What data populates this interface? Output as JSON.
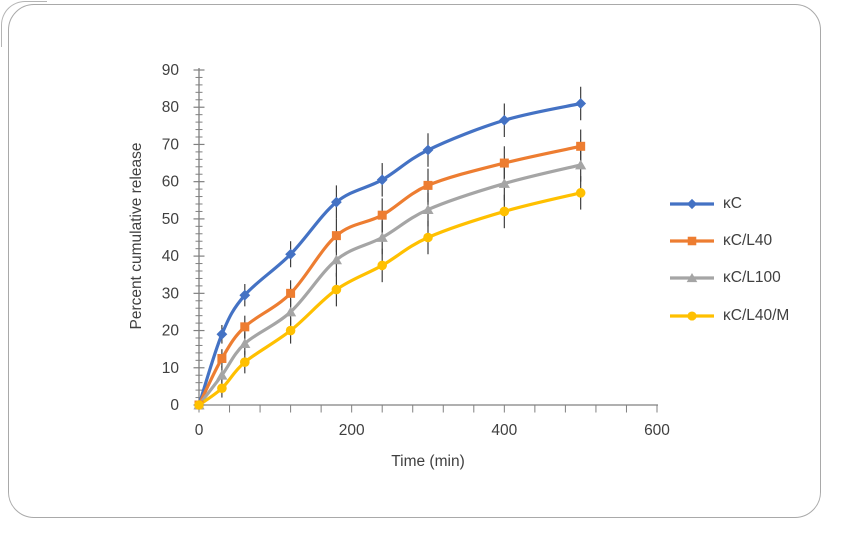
{
  "chart_data": {
    "type": "line",
    "title": "",
    "xlabel": "Time (min)",
    "ylabel": "Percent cumulative release",
    "x": [
      0,
      30,
      60,
      120,
      180,
      240,
      300,
      400,
      500
    ],
    "xlim": [
      0,
      600
    ],
    "ylim": [
      0,
      90
    ],
    "x_tick_labels": [
      0,
      200,
      400,
      600
    ],
    "x_minor_tick_step": 40,
    "y_tick_step": 10,
    "y_minor_tick_step": 2,
    "grid": false,
    "legend_position": "right",
    "error_bars_y_halfwidth": [
      0,
      2.5,
      3,
      3.5,
      4.5,
      4.5,
      4.5,
      4.5,
      4.5
    ],
    "series": [
      {
        "name": "κC",
        "marker": "diamond",
        "color": "#4472C4",
        "values": [
          0,
          19,
          29.5,
          40.5,
          54.5,
          60.5,
          68.5,
          76.5,
          81
        ]
      },
      {
        "name": "κC/L40",
        "marker": "square",
        "color": "#ED7D31",
        "values": [
          0,
          12.5,
          21,
          30,
          45.5,
          51,
          59,
          65,
          69.5
        ]
      },
      {
        "name": "κC/L100",
        "marker": "triangle",
        "color": "#A5A5A5",
        "values": [
          0,
          8,
          16.5,
          25,
          39,
          45,
          52.5,
          59.5,
          64.5
        ]
      },
      {
        "name": "κC/L40/M",
        "marker": "circle",
        "color": "#FFC000",
        "values": [
          0,
          4.5,
          11.5,
          20,
          31,
          37.5,
          45,
          52,
          57
        ]
      }
    ],
    "colors": {
      "axis": "#808080",
      "text": "#404040",
      "error_bar": "#3f3f3f"
    }
  }
}
